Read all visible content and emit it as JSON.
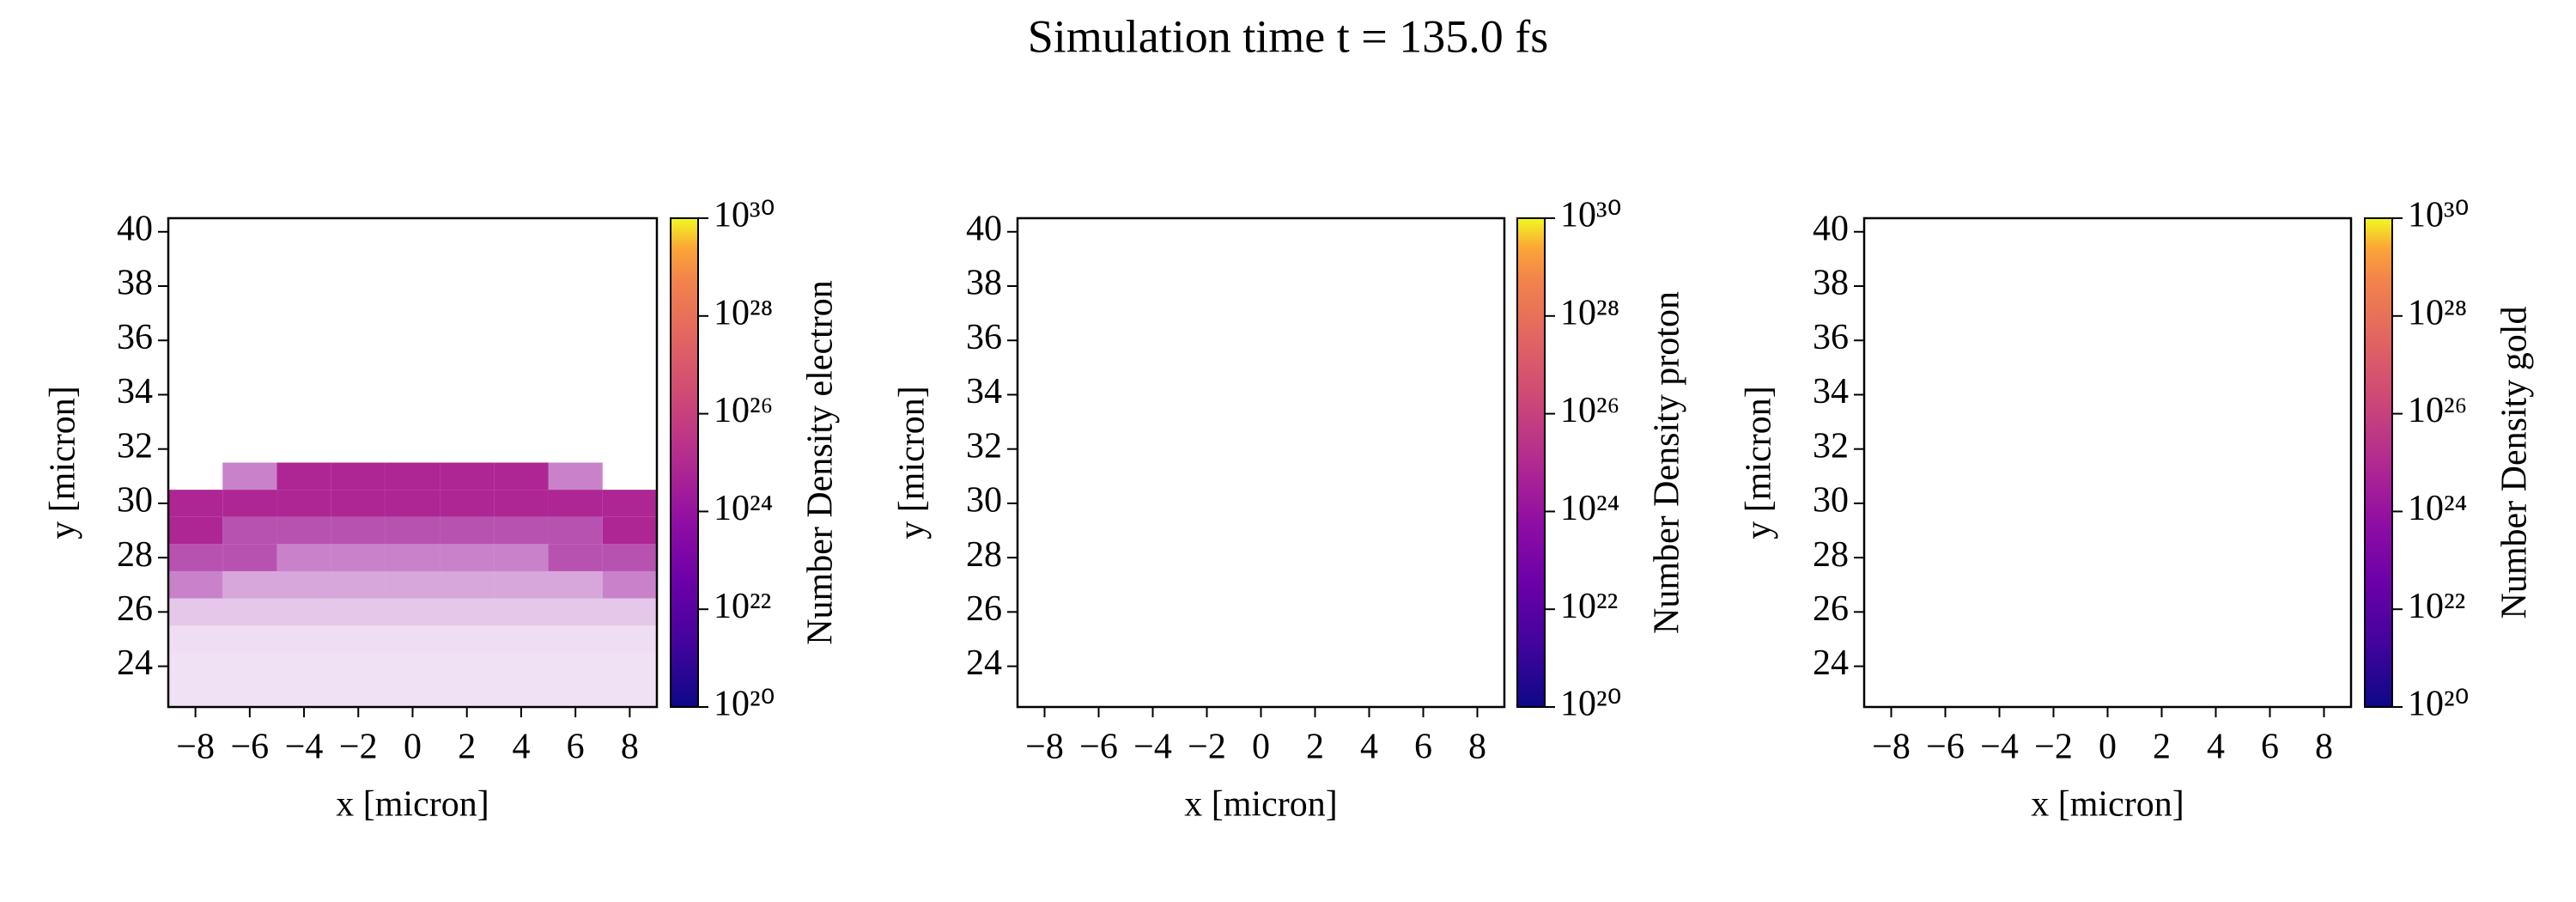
{
  "title": "Simulation time t = 135.0 fs",
  "chart_data": [
    {
      "type": "heatmap",
      "xlabel": "x [micron]",
      "ylabel": "y [micron]",
      "colorbar_label": "Number Density electron",
      "cmap": "plasma",
      "color_scale": "log",
      "clim": [
        1e+20,
        1e+30
      ],
      "cticks": [
        {
          "value": 1e+20,
          "label": "10²⁰"
        },
        {
          "value": 1e+22,
          "label": "10²²"
        },
        {
          "value": 1e+24,
          "label": "10²⁴"
        },
        {
          "value": 1e+26,
          "label": "10²⁶"
        },
        {
          "value": 1e+28,
          "label": "10²⁸"
        },
        {
          "value": 1e+30,
          "label": "10³⁰"
        }
      ],
      "xlim": [
        -9,
        9
      ],
      "ylim": [
        22.5,
        40.5
      ],
      "xticks": [
        {
          "value": -8,
          "label": "−8"
        },
        {
          "value": -6,
          "label": "−6"
        },
        {
          "value": -4,
          "label": "−4"
        },
        {
          "value": -2,
          "label": "−2"
        },
        0,
        2,
        4,
        6,
        8
      ],
      "yticks": [
        24,
        26,
        28,
        30,
        32,
        34,
        36,
        38,
        40
      ],
      "x_bins": [
        -9,
        -7,
        -5,
        -3,
        -1,
        1,
        3,
        5,
        7,
        9
      ],
      "y_bins": [
        22.5,
        23.5,
        24.5,
        25.5,
        26.5,
        27.5,
        28.5,
        29.5,
        30.5,
        31.5
      ],
      "values": [
        [
          1e+23,
          1e+23,
          1e+23,
          1e+23,
          1e+23,
          1e+23,
          1e+23,
          1e+23,
          1e+23
        ],
        [
          1e+23,
          1e+23,
          1e+23,
          1e+23,
          1e+23,
          1e+23,
          1e+23,
          1e+23,
          1e+23
        ],
        [
          1.5e+23,
          1.5e+23,
          1.5e+23,
          1.5e+23,
          1.5e+23,
          1.5e+23,
          1.5e+23,
          1.5e+23,
          1.5e+23
        ],
        [
          2e+23,
          2e+23,
          2e+23,
          2e+23,
          2e+23,
          2e+23,
          2e+23,
          2e+23,
          2e+23
        ],
        [
          5e+23,
          3e+23,
          3e+23,
          3e+23,
          3e+23,
          3e+23,
          3e+23,
          3e+23,
          5e+23
        ],
        [
          1e+24,
          1e+24,
          5e+23,
          5e+23,
          5e+23,
          5e+23,
          5e+23,
          1e+24,
          1e+24
        ],
        [
          2e+24,
          1e+24,
          1e+24,
          1e+24,
          1e+24,
          1e+24,
          1e+24,
          1e+24,
          2e+24
        ],
        [
          2e+24,
          2e+24,
          2e+24,
          2e+24,
          2e+24,
          2e+24,
          2e+24,
          2e+24,
          2e+24
        ],
        [
          null,
          5e+23,
          2e+24,
          2e+24,
          2e+24,
          2e+24,
          2e+24,
          5e+23,
          null
        ]
      ]
    },
    {
      "type": "heatmap",
      "xlabel": "x [micron]",
      "ylabel": "y [micron]",
      "colorbar_label": "Number Density proton",
      "cmap": "plasma",
      "color_scale": "log",
      "clim": [
        1e+20,
        1e+30
      ],
      "cticks": [
        {
          "value": 1e+20,
          "label": "10²⁰"
        },
        {
          "value": 1e+22,
          "label": "10²²"
        },
        {
          "value": 1e+24,
          "label": "10²⁴"
        },
        {
          "value": 1e+26,
          "label": "10²⁶"
        },
        {
          "value": 1e+28,
          "label": "10²⁸"
        },
        {
          "value": 1e+30,
          "label": "10³⁰"
        }
      ],
      "xlim": [
        -9,
        9
      ],
      "ylim": [
        22.5,
        40.5
      ],
      "xticks": [
        {
          "value": -8,
          "label": "−8"
        },
        {
          "value": -6,
          "label": "−6"
        },
        {
          "value": -4,
          "label": "−4"
        },
        {
          "value": -2,
          "label": "−2"
        },
        0,
        2,
        4,
        6,
        8
      ],
      "yticks": [
        24,
        26,
        28,
        30,
        32,
        34,
        36,
        38,
        40
      ]
    },
    {
      "type": "heatmap",
      "xlabel": "x [micron]",
      "ylabel": "y [micron]",
      "colorbar_label": "Number Density gold",
      "cmap": "plasma",
      "color_scale": "log",
      "clim": [
        1e+20,
        1e+30
      ],
      "cticks": [
        {
          "value": 1e+20,
          "label": "10²⁰"
        },
        {
          "value": 1e+22,
          "label": "10²²"
        },
        {
          "value": 1e+24,
          "label": "10²⁴"
        },
        {
          "value": 1e+26,
          "label": "10²⁶"
        },
        {
          "value": 1e+28,
          "label": "10²⁸"
        },
        {
          "value": 1e+30,
          "label": "10³⁰"
        }
      ],
      "xlim": [
        -9,
        9
      ],
      "ylim": [
        22.5,
        40.5
      ],
      "xticks": [
        {
          "value": -8,
          "label": "−8"
        },
        {
          "value": -6,
          "label": "−6"
        },
        {
          "value": -4,
          "label": "−4"
        },
        {
          "value": -2,
          "label": "−2"
        },
        0,
        2,
        4,
        6,
        8
      ],
      "yticks": [
        24,
        26,
        28,
        30,
        32,
        34,
        36,
        38,
        40
      ]
    }
  ]
}
